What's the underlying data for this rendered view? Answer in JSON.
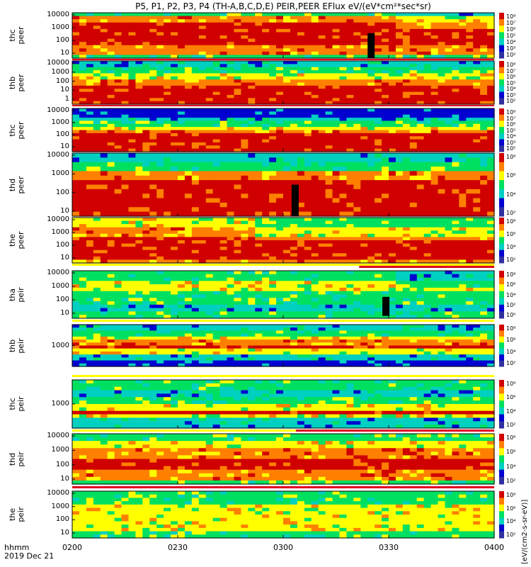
{
  "title": "P5, P1, P2, P3, P4 (TH-A,B,C,D,E) PEIR,PEER EFlux eV/(eV*cm²*sec*sr)",
  "xaxis": {
    "label_line1": "hhmm",
    "label_line2": "2019 Dec 21",
    "ticks": [
      "0200",
      "0230",
      "0300",
      "0330",
      "0400"
    ]
  },
  "colorbar_unit": "[eV/(cm2-s-sr-eV)]",
  "colors": {
    "low": "#0000d0",
    "mid": "#00d0c0",
    "green": "#00e060",
    "yellow": "#ffff00",
    "orange": "#ff8000",
    "high": "#d00000",
    "flag_red": "#e00020",
    "flag_yellow": "#ffff00",
    "black": "#000000"
  },
  "chart_data": {
    "type": "heatmap",
    "x_range": [
      "0200",
      "0400"
    ],
    "panels": [
      {
        "label": [
          "thc",
          "peer"
        ],
        "yticks": [
          "10000",
          "1000",
          "100",
          "10"
        ],
        "cbar_ticks": [
          "10⁸",
          "10⁷",
          "10⁶",
          "10⁵",
          "10⁴",
          "10³",
          "10²"
        ]
      },
      {
        "label": [
          "thb",
          "peer"
        ],
        "yticks": [
          "10000",
          "1000",
          "100",
          "10",
          "1"
        ],
        "cbar_ticks": [
          "10⁸",
          "10⁷",
          "10⁶",
          "10⁵",
          "10⁴",
          "10³",
          "10²"
        ]
      },
      {
        "label": [
          "thc",
          "peer"
        ],
        "yticks": [
          "10000",
          "1000",
          "100",
          "10"
        ],
        "cbar_ticks": [
          "10⁸",
          "10⁷",
          "10⁶",
          "10⁵",
          "10⁴",
          "10³",
          "10²"
        ]
      },
      {
        "label": [
          "thd",
          "peer"
        ],
        "yticks": [
          "10000",
          "1000",
          "100",
          "10"
        ],
        "cbar_ticks": [
          "10⁸",
          "10⁶",
          "10⁴",
          "10²"
        ]
      },
      {
        "label": [
          "the",
          "peer"
        ],
        "yticks": [
          "10000",
          "1000",
          "100",
          "10"
        ],
        "cbar_ticks": [
          "10⁸",
          "10⁶",
          "10⁴",
          "10²"
        ]
      },
      {
        "label": [
          "tha",
          "peir"
        ],
        "yticks": [
          "10000",
          "1000",
          "100",
          "10"
        ],
        "cbar_ticks": [
          "10⁸",
          "10⁶",
          "10⁴",
          "10²",
          "10⁰"
        ]
      },
      {
        "label": [
          "thb",
          "peir"
        ],
        "yticks": [
          "1000"
        ],
        "cbar_ticks": [
          "10⁸",
          "10⁶",
          "10⁴",
          "10²"
        ]
      },
      {
        "label": [
          "thc",
          "peir"
        ],
        "yticks": [
          "1000"
        ],
        "cbar_ticks": [
          "10⁸",
          "10⁶",
          "10⁴",
          "10²"
        ]
      },
      {
        "label": [
          "thd",
          "peir"
        ],
        "yticks": [
          "10000",
          "1000",
          "100",
          "10"
        ],
        "cbar_ticks": [
          "10⁸",
          "10⁶",
          "10⁴",
          "10²"
        ]
      },
      {
        "label": [
          "the",
          "peir"
        ],
        "yticks": [
          "10000",
          "1000",
          "100",
          "10"
        ],
        "cbar_ticks": [
          "10⁸",
          "10⁶",
          "10⁴",
          "10²"
        ]
      }
    ]
  }
}
